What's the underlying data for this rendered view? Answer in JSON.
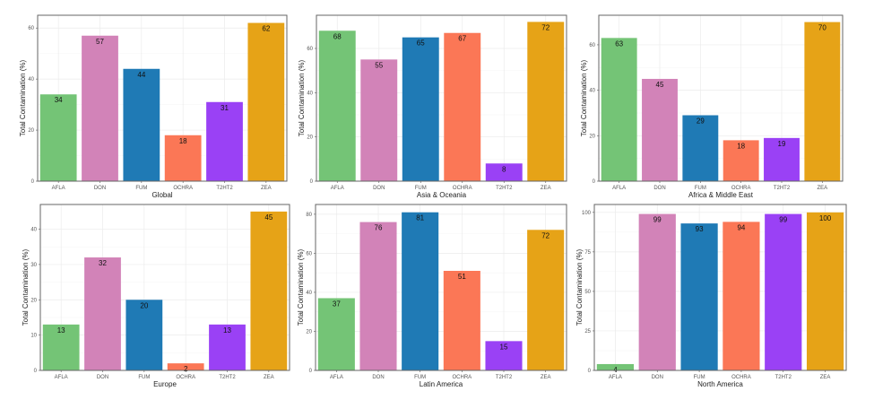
{
  "chart_data": [
    {
      "type": "bar",
      "title": "",
      "xlabel": "Global",
      "ylabel": "Total Contamination (%)",
      "categories": [
        "AFLA",
        "DON",
        "FUM",
        "OCHRA",
        "T2HT2",
        "ZEA"
      ],
      "values": [
        34,
        57,
        44,
        18,
        31,
        62
      ],
      "yticks": [
        0,
        20,
        40,
        60
      ],
      "ylim": [
        0,
        65
      ],
      "grid": true
    },
    {
      "type": "bar",
      "title": "",
      "xlabel": "Asia & Oceania",
      "ylabel": "Total Contamination (%)",
      "categories": [
        "AFLA",
        "DON",
        "FUM",
        "OCHRA",
        "T2HT2",
        "ZEA"
      ],
      "values": [
        68,
        55,
        65,
        67,
        8,
        72
      ],
      "yticks": [
        0,
        20,
        40,
        60
      ],
      "ylim": [
        0,
        75
      ],
      "grid": true
    },
    {
      "type": "bar",
      "title": "",
      "xlabel": "Africa & Middle East",
      "ylabel": "Total Contamination (%)",
      "categories": [
        "AFLA",
        "DON",
        "FUM",
        "OCHRA",
        "T2HT2",
        "ZEA"
      ],
      "values": [
        63,
        45,
        29,
        18,
        19,
        70
      ],
      "yticks": [
        0,
        20,
        40,
        60
      ],
      "ylim": [
        0,
        73
      ],
      "grid": true
    },
    {
      "type": "bar",
      "title": "",
      "xlabel": "Europe",
      "ylabel": "Total Contamination (%)",
      "categories": [
        "AFLA",
        "DON",
        "FUM",
        "OCHRA",
        "T2HT2",
        "ZEA"
      ],
      "values": [
        13,
        32,
        20,
        2,
        13,
        45
      ],
      "yticks": [
        0,
        10,
        20,
        30,
        40
      ],
      "ylim": [
        0,
        47
      ],
      "grid": true
    },
    {
      "type": "bar",
      "title": "",
      "xlabel": "Latin America",
      "ylabel": "Total Contamination (%)",
      "categories": [
        "AFLA",
        "DON",
        "FUM",
        "OCHRA",
        "T2HT2",
        "ZEA"
      ],
      "values": [
        37,
        76,
        81,
        51,
        15,
        72
      ],
      "yticks": [
        0,
        20,
        40,
        60,
        80
      ],
      "ylim": [
        0,
        85
      ],
      "grid": true
    },
    {
      "type": "bar",
      "title": "",
      "xlabel": "North America",
      "ylabel": "Total Contamination (%)",
      "categories": [
        "AFLA",
        "DON",
        "FUM",
        "OCHRA",
        "T2HT2",
        "ZEA"
      ],
      "values": [
        4,
        99,
        93,
        94,
        99,
        100
      ],
      "yticks": [
        0,
        25,
        50,
        75,
        100
      ],
      "ylim": [
        0,
        105
      ],
      "grid": true
    }
  ],
  "colors": {
    "AFLA": "#74c476",
    "DON": "#d283b8",
    "FUM": "#1f7ab5",
    "OCHRA": "#fb7756",
    "T2HT2": "#9a41f5",
    "ZEA": "#e6a317"
  }
}
